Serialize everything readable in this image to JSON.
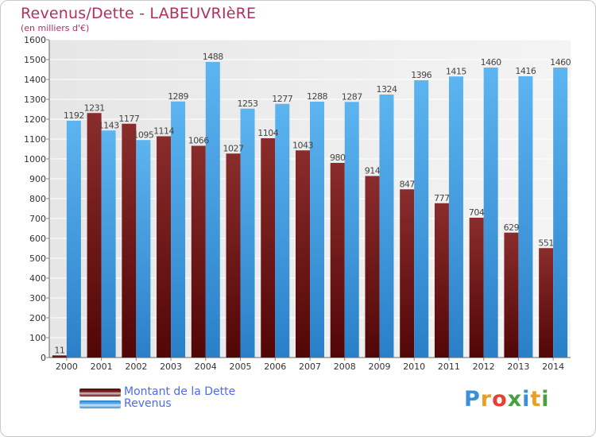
{
  "header": {
    "title": "Revenus/Dette - LABEUVRIèRE",
    "subtitle": "(en milliers d'€)"
  },
  "chart_data": {
    "type": "bar",
    "title": "Revenus/Dette - LABEUVRIèRE",
    "subtitle": "(en milliers d'€)",
    "categories": [
      "2000",
      "2001",
      "2002",
      "2003",
      "2004",
      "2005",
      "2006",
      "2007",
      "2008",
      "2009",
      "2010",
      "2011",
      "2012",
      "2013",
      "2014"
    ],
    "series": [
      {
        "name": "Montant de la Dette",
        "color": "#7a1f1f",
        "values": [
          11,
          1231,
          1177,
          1114,
          1066,
          1027,
          1104,
          1043,
          980,
          914,
          847,
          777,
          704,
          629,
          551
        ],
        "labels": [
          "11",
          "1231",
          "1177",
          "1114",
          "1066",
          "1027",
          "1104",
          "1043",
          "980",
          "914",
          "847",
          "777",
          "704",
          "629",
          "551"
        ]
      },
      {
        "name": "Revenus",
        "color": "#3f9fe6",
        "values": [
          1192,
          1143,
          1095,
          1289,
          1488,
          1253,
          1277,
          1288,
          1287,
          1324,
          1396,
          1415,
          1460,
          1416,
          1460
        ],
        "labels": [
          "1192",
          "1143",
          "1095",
          "1289",
          "1488",
          "1253",
          "1277",
          "1288",
          "1287",
          "1324",
          "1396",
          "1415",
          "1460",
          "1416",
          "1460"
        ]
      }
    ],
    "y_ticks": [
      "0",
      "100",
      "200",
      "300",
      "400",
      "500",
      "600",
      "700",
      "800",
      "900",
      "1000",
      "1100",
      "1200",
      "1300",
      "1400",
      "1500",
      "1600"
    ],
    "ylim": [
      0,
      1600
    ],
    "grid": true,
    "legend_position": "bottom-left"
  },
  "legend": {
    "items": [
      {
        "label": "Montant de la Dette",
        "color": "#7a1f1f"
      },
      {
        "label": "Revenus",
        "color": "#3f9fe6"
      }
    ]
  },
  "logo": {
    "text": "Proxiti",
    "letters": [
      "P",
      "r",
      "o",
      "x",
      "i",
      "t",
      "i"
    ],
    "colors": [
      "#3a8fd8",
      "#e8a020",
      "#e84030",
      "#4aa040",
      "#3a8fd8",
      "#e8a020",
      "#4aa040"
    ]
  }
}
